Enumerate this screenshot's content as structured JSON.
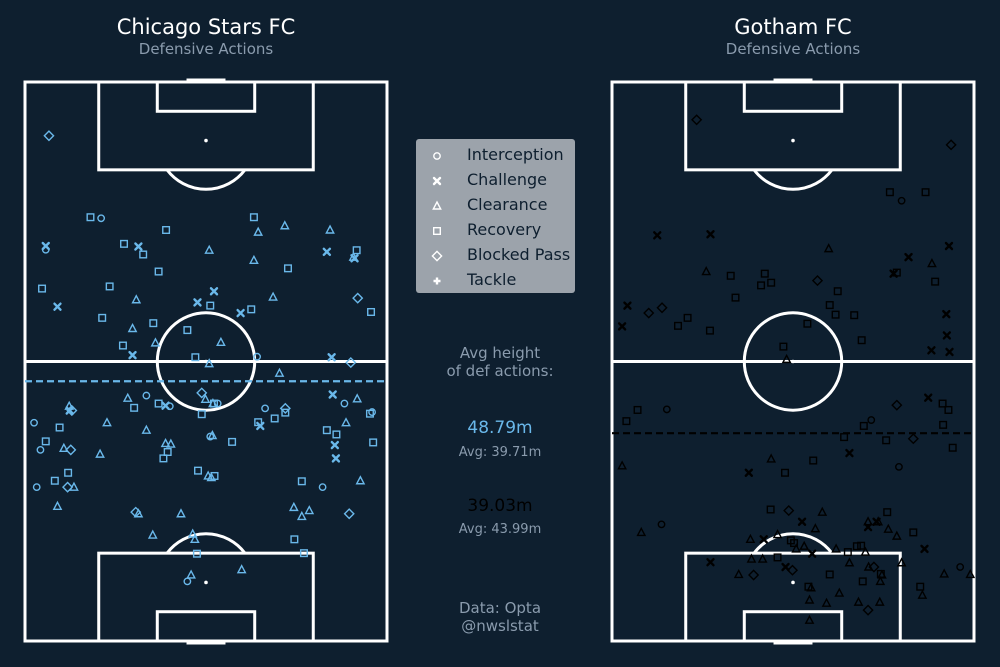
{
  "home": {
    "team": "Chicago Stars FC",
    "subtitle": "Defensive Actions",
    "color": "#6ab8ea",
    "avg_height_label": "48.79m",
    "league_avg_label": "Avg: 39.71m"
  },
  "away": {
    "team": "Gotham FC",
    "subtitle": "Defensive Actions",
    "color": "#000000",
    "avg_height_label": "39.03m",
    "league_avg_label": "Avg: 43.99m"
  },
  "legend": [
    {
      "label": "Interception",
      "icon": "circle-icon"
    },
    {
      "label": "Challenge",
      "icon": "x-marker-icon"
    },
    {
      "label": "Clearance",
      "icon": "triangle-icon"
    },
    {
      "label": "Recovery",
      "icon": "square-icon"
    },
    {
      "label": "Blocked Pass",
      "icon": "diamond-icon"
    },
    {
      "label": "Tackle",
      "icon": "plus-marker-icon"
    }
  ],
  "avg_header": "Avg height\nof def actions:",
  "source": "Data: Opta\n@nwslstat",
  "chart_data": [
    {
      "type": "scatter",
      "team": "Chicago Stars FC",
      "pitch": {
        "length": 105,
        "width": 68
      },
      "attack_direction": "up",
      "avg_height": 48.79,
      "league_avg_height": 39.71,
      "avg_line_style": "dashed",
      "points": [
        [
          28.9,
          8.0,
          "B"
        ],
        [
          43.7,
          45.1,
          "I"
        ],
        [
          66.6,
          15.9,
          "R"
        ],
        [
          59.7,
          24.1,
          "R"
        ],
        [
          44.6,
          35.5,
          "R"
        ],
        [
          31.0,
          35.6,
          "R"
        ],
        [
          41.1,
          43.8,
          "R"
        ],
        [
          37.4,
          38.9,
          "R"
        ],
        [
          38.4,
          34.8,
          "I"
        ],
        [
          19.1,
          50.6,
          "R"
        ],
        [
          56.0,
          24.5,
          "T"
        ],
        [
          58.4,
          30.5,
          "R"
        ],
        [
          52.3,
          61.2,
          "B"
        ],
        [
          62.3,
          42.5,
          "R"
        ],
        [
          66.2,
          3.2,
          "R"
        ],
        [
          55.5,
          18.4,
          "R"
        ],
        [
          32.0,
          32.5,
          "R"
        ],
        [
          44.6,
          35.3,
          "T"
        ],
        [
          72.6,
          22.2,
          "R"
        ],
        [
          69.4,
          25.1,
          "R"
        ],
        [
          39.6,
          56.7,
          "R"
        ],
        [
          77.2,
          26.5,
          "R"
        ],
        [
          64.6,
          46.6,
          "T"
        ],
        [
          50.3,
          47.8,
          "T"
        ],
        [
          30.1,
          5.6,
          "R"
        ],
        [
          36.2,
          7.3,
          "T"
        ],
        [
          43.7,
          48.9,
          "B"
        ],
        [
          45.5,
          62.4,
          "T"
        ],
        [
          53.7,
          20.2,
          "X"
        ],
        [
          31.0,
          34.4,
          "T"
        ],
        [
          71.5,
          43.0,
          "T"
        ],
        [
          64.1,
          20.9,
          "T"
        ],
        [
          42.7,
          64.8,
          "R"
        ],
        [
          35.9,
          2.9,
          "I"
        ],
        [
          58.7,
          20.2,
          "T"
        ],
        [
          42.6,
          33.2,
          "R"
        ],
        [
          24.5,
          53.4,
          "T"
        ],
        [
          63.6,
          32.4,
          "X"
        ],
        [
          53.3,
          32.0,
          "R"
        ],
        [
          41.8,
          46.9,
          "R"
        ],
        [
          40.4,
          44.2,
          "X"
        ],
        [
          19.1,
          31.9,
          "T"
        ],
        [
          23.9,
          60.9,
          "B"
        ],
        [
          41.0,
          60.3,
          "T"
        ],
        [
          28.9,
          9.2,
          "T"
        ],
        [
          62.8,
          6.1,
          "X"
        ],
        [
          34.3,
          58.4,
          "X"
        ],
        [
          44.1,
          8.3,
          "T"
        ],
        [
          73.5,
          3.9,
          "I"
        ],
        [
          30.1,
          63.0,
          "T"
        ],
        [
          46.3,
          57.8,
          "X"
        ],
        [
          74.1,
          21.3,
          "X"
        ],
        [
          42.9,
          48.9,
          "R"
        ],
        [
          25.3,
          6.1,
          "T"
        ],
        [
          35.9,
          8.6,
          "B"
        ],
        [
          60.7,
          14.5,
          "R"
        ],
        [
          23.9,
          21.3,
          "T"
        ],
        [
          46.1,
          22.8,
          "I"
        ],
        [
          44.6,
          36.2,
          "I"
        ],
        [
          73.4,
          62.3,
          "R"
        ],
        [
          11.2,
          30.5,
          "I"
        ],
        [
          41.0,
          15.4,
          "T"
        ],
        [
          45.6,
          19.3,
          "T"
        ],
        [
          35.1,
          14.1,
          "T"
        ],
        [
          36.8,
          58.2,
          "X"
        ],
        [
          38.6,
          35.2,
          "T"
        ],
        [
          37.0,
          27.4,
          "T"
        ],
        [
          43.3,
          8.8,
          "B"
        ],
        [
          53.4,
          43.6,
          "I"
        ],
        [
          70.0,
          49.4,
          "R"
        ],
        [
          31.6,
          8.1,
          "R"
        ],
        [
          61.8,
          65.0,
          "R"
        ],
        [
          73.1,
          56.7,
          "X"
        ],
        [
          23.9,
          29.3,
          "T"
        ],
        [
          28.9,
          55.9,
          "I"
        ],
        [
          19.9,
          24.0,
          "T"
        ],
        [
          43.0,
          65.2,
          "I"
        ],
        [
          23.4,
          52.0,
          "T"
        ],
        [
          13.4,
          40.7,
          "T"
        ],
        [
          77.2,
          57.3,
          "T"
        ],
        [
          79.6,
          12.3,
          "R"
        ],
        [
          78.0,
          48.8,
          "T"
        ],
        [
          45.4,
          33.9,
          "T"
        ],
        [
          71.9,
          61.9,
          "X"
        ],
        [
          61.6,
          40.5,
          "X"
        ],
        [
          43.3,
          8.4,
          "X"
        ],
        [
          44.2,
          26.4,
          "X"
        ],
        [
          52.1,
          34.6,
          "T"
        ],
        [
          64.4,
          62.5,
          "B"
        ],
        [
          44.1,
          27.2,
          "I"
        ],
        [
          41.0,
          1.7,
          "I"
        ],
        [
          56.1,
          36.8,
          "T"
        ],
        [
          73.4,
          34.6,
          "T"
        ],
        [
          43.8,
          20.5,
          "R"
        ],
        [
          35.5,
          26.8,
          "R"
        ],
        [
          74.6,
          18.6,
          "R"
        ],
        [
          74.2,
          3.9,
          "X"
        ],
        [
          12.4,
          31.2,
          "T"
        ],
        [
          20.1,
          31.5,
          "T"
        ],
        [
          25.1,
          50.5,
          "T"
        ],
        [
          46.6,
          33.2,
          "B"
        ],
        [
          53.3,
          57.6,
          "X"
        ],
        [
          79.6,
          43.0,
          "R"
        ],
        [
          24.2,
          20.8,
          "B"
        ],
        [
          39.6,
          22.8,
          "T"
        ],
        [
          37.1,
          26.4,
          "T"
        ],
        [
          34.3,
          26.0,
          "R"
        ],
        [
          16.5,
          52.4,
          "R"
        ],
        [
          38.8,
          58.5,
          "R"
        ],
        [
          65.7,
          35.5,
          "X"
        ],
        [
          37.3,
          65.4,
          "R"
        ],
        [
          37.5,
          3.9,
          "R"
        ],
        [
          16.4,
          32.3,
          "R"
        ],
        [
          40.1,
          6.5,
          "R"
        ],
        [
          79.4,
          14.3,
          "I"
        ],
        [
          30.0,
          52.0,
          "R"
        ],
        [
          72.1,
          61.7,
          "T"
        ],
        [
          30.7,
          35.0,
          "T"
        ],
        [
          76.8,
          43.8,
          "T"
        ],
        [
          94.9,
          4.5,
          "B"
        ],
        [
          63.0,
          34.8,
          "R"
        ],
        [
          44.6,
          25.1,
          "R"
        ],
        [
          44.6,
          60.0,
          "I"
        ],
        [
          28.9,
          2.2,
          "I"
        ]
      ]
    },
    {
      "type": "scatter",
      "team": "Gotham FC",
      "pitch": {
        "length": 105,
        "width": 68
      },
      "attack_direction": "up",
      "avg_height": 39.03,
      "league_avg_height": 43.99,
      "avg_line_style": "dashed",
      "points": [
        [
          97.9,
          15.9,
          "B"
        ],
        [
          93.2,
          63.7,
          "B"
        ],
        [
          72.1,
          55.7,
          "X"
        ],
        [
          84.3,
          58.9,
          "R"
        ],
        [
          82.7,
          54.4,
          "I"
        ],
        [
          84.3,
          52.2,
          "R"
        ],
        [
          74.2,
          63.3,
          "X"
        ],
        [
          76.4,
          18.5,
          "X"
        ],
        [
          70.9,
          60.1,
          "T"
        ],
        [
          69.0,
          52.9,
          "X"
        ],
        [
          61.2,
          45.5,
          "R"
        ],
        [
          68.6,
          22.3,
          "R"
        ],
        [
          67.3,
          29.9,
          "R"
        ],
        [
          67.7,
          38.6,
          "B"
        ],
        [
          61.3,
          42.0,
          "R"
        ],
        [
          61.6,
          6.9,
          "B"
        ],
        [
          65.7,
          42.4,
          "R"
        ],
        [
          55.3,
          32.2,
          "R"
        ],
        [
          52.9,
          32.8,
          "T"
        ],
        [
          64.5,
          23.2,
          "R"
        ],
        [
          63.1,
          40.9,
          "R"
        ],
        [
          69.0,
          28.7,
          "R"
        ],
        [
          59.2,
          12.4,
          "R"
        ],
        [
          58.3,
          18.4,
          "R"
        ],
        [
          60.7,
          14.2,
          "R"
        ],
        [
          59.6,
          36.7,
          "R"
        ],
        [
          69.4,
          17.7,
          "T"
        ],
        [
          66.8,
          28.0,
          "R"
        ],
        [
          73.7,
          40.7,
          "T"
        ],
        [
          56.5,
          46.9,
          "R"
        ],
        [
          57.4,
          62.9,
          "X"
        ],
        [
          54.3,
          63.4,
          "X"
        ],
        [
          67.5,
          60.7,
          "R"
        ],
        [
          61.4,
          62.8,
          "X"
        ],
        [
          54.6,
          60.0,
          "X"
        ],
        [
          76.2,
          8.5,
          "X"
        ],
        [
          59.1,
          1.9,
          "X"
        ],
        [
          63.0,
          2.9,
          "X"
        ],
        [
          62.6,
          9.4,
          "B"
        ],
        [
          69.2,
          53.5,
          "R"
        ],
        [
          34.2,
          29.9,
          "T"
        ],
        [
          41.5,
          48.7,
          "I"
        ],
        [
          37.7,
          51.5,
          "R"
        ],
        [
          32.7,
          53.9,
          "I"
        ],
        [
          43.4,
          63.2,
          "R"
        ],
        [
          33.9,
          37.8,
          "R"
        ],
        [
          40.4,
          47.3,
          "R"
        ],
        [
          44.6,
          62.1,
          "R"
        ],
        [
          45.7,
          59.4,
          "X"
        ],
        [
          35.3,
          44.6,
          "X"
        ],
        [
          36.3,
          64.0,
          "R"
        ],
        [
          44.3,
          53.5,
          "B"
        ],
        [
          43.4,
          4.8,
          "R"
        ],
        [
          41.3,
          2.7,
          "R"
        ],
        [
          31.6,
          25.7,
          "X"
        ],
        [
          38.0,
          56.6,
          "B"
        ],
        [
          40.6,
          62.2,
          "R"
        ],
        [
          38.3,
          43.6,
          "R"
        ],
        [
          43.5,
          10.3,
          "I"
        ],
        [
          24.5,
          33.2,
          "B"
        ],
        [
          31.6,
          32.5,
          "R"
        ],
        [
          32.9,
          1.9,
          "T"
        ],
        [
          20.4,
          5.5,
          "T"
        ],
        [
          21.9,
          9.3,
          "I"
        ],
        [
          24.7,
          29.8,
          "R"
        ],
        [
          20.0,
          31.1,
          "T"
        ],
        [
          17.3,
          34.6,
          "T"
        ],
        [
          18.9,
          33.6,
          "R"
        ],
        [
          22.4,
          35.7,
          "X"
        ],
        [
          21.1,
          38.2,
          "T"
        ],
        [
          17.8,
          36.1,
          "T"
        ],
        [
          24.2,
          39.5,
          "T"
        ],
        [
          15.7,
          31.1,
          "R"
        ],
        [
          13.9,
          32.6,
          "X"
        ],
        [
          16.7,
          44.3,
          "R"
        ],
        [
          14.7,
          44.6,
          "T"
        ],
        [
          11.2,
          47.1,
          "R"
        ],
        [
          7.7,
          37.1,
          "T"
        ],
        [
          10.2,
          36.9,
          "R"
        ],
        [
          9.0,
          42.7,
          "T"
        ],
        [
          17.3,
          42.1,
          "T"
        ],
        [
          17.9,
          46.8,
          "R"
        ],
        [
          21.4,
          48.1,
          "X"
        ],
        [
          22.4,
          50.0,
          "T"
        ],
        [
          21.0,
          51.9,
          "T"
        ],
        [
          16.7,
          47.6,
          "T"
        ],
        [
          12.4,
          50.7,
          "T"
        ],
        [
          20.4,
          56.6,
          "R"
        ],
        [
          14.7,
          54.4,
          "T"
        ],
        [
          10.2,
          57.9,
          "R"
        ],
        [
          19.7,
          53.5,
          "T"
        ],
        [
          13.9,
          48.2,
          "T"
        ],
        [
          12.5,
          40.9,
          "R"
        ],
        [
          17.8,
          46.0,
          "R"
        ],
        [
          15.4,
          28.3,
          "T"
        ],
        [
          19.1,
          26.0,
          "T"
        ],
        [
          12.4,
          26.6,
          "B"
        ],
        [
          18.4,
          34.2,
          "R"
        ],
        [
          13.3,
          33.9,
          "B"
        ],
        [
          5.8,
          48.1,
          "B"
        ],
        [
          11.2,
          50.4,
          "T"
        ],
        [
          7.3,
          46.3,
          "T"
        ],
        [
          13.9,
          49.2,
          "B"
        ],
        [
          10.0,
          37.4,
          "T"
        ],
        [
          12.6,
          50.5,
          "R"
        ],
        [
          22.4,
          49.7,
          "X"
        ],
        [
          22.4,
          48.1,
          "T"
        ],
        [
          16.4,
          37.6,
          "X"
        ],
        [
          14.8,
          18.5,
          "X"
        ],
        [
          15.4,
          26.2,
          "T"
        ],
        [
          19.1,
          28.5,
          "X"
        ],
        [
          17.3,
          58.7,
          "X"
        ],
        [
          12.5,
          23.8,
          "T"
        ],
        [
          7.3,
          50.3,
          "T"
        ],
        [
          7.1,
          40.3,
          "T"
        ],
        [
          3.9,
          37.1,
          "T"
        ],
        [
          24.2,
          51.7,
          "R"
        ],
        [
          13.9,
          65.4,
          "I"
        ],
        [
          12.5,
          67.3,
          "T"
        ],
        [
          8.6,
          58.3,
          "T"
        ],
        [
          12.6,
          62.4,
          "T"
        ]
      ]
    }
  ]
}
